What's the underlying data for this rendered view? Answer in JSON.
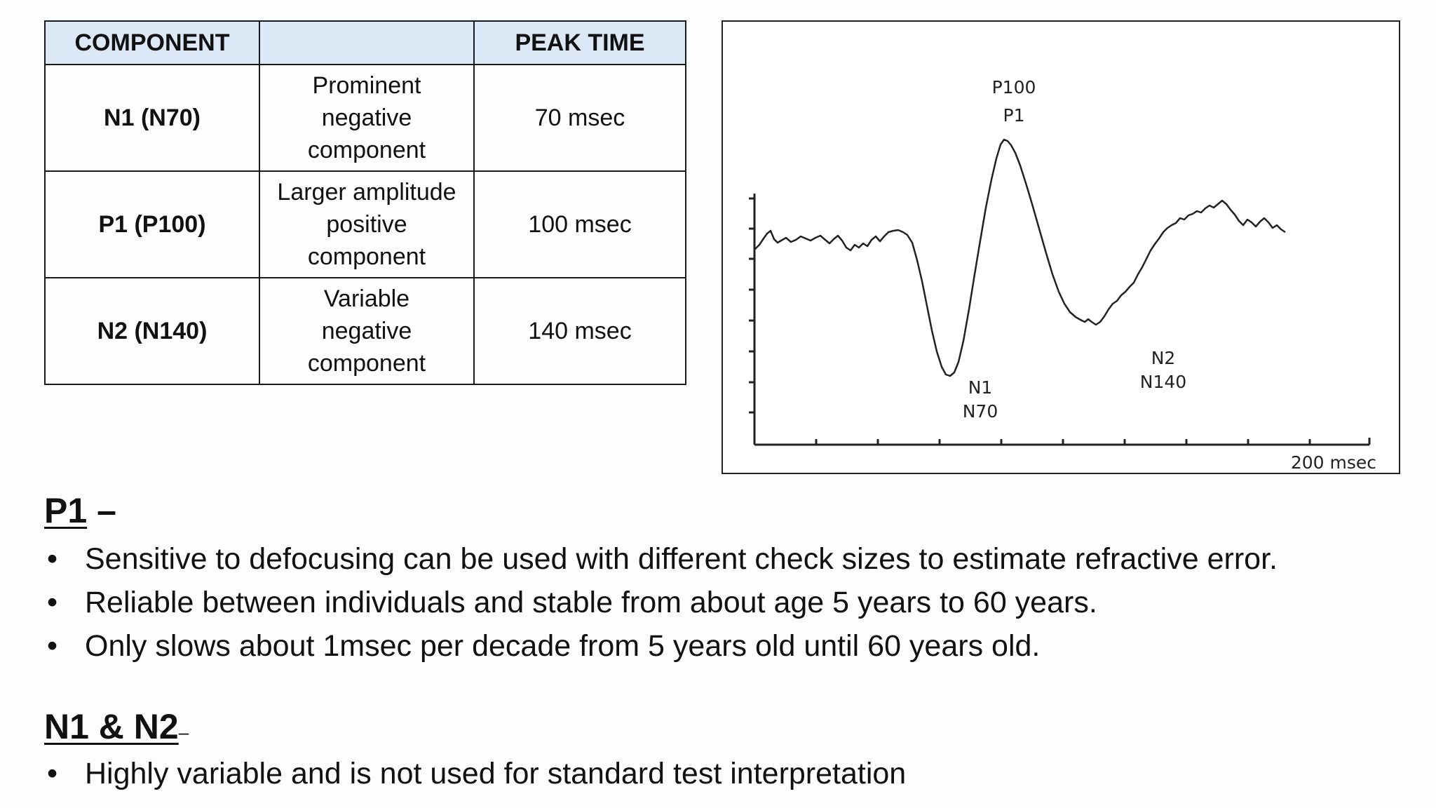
{
  "table": {
    "headers": [
      "COMPONENT",
      "",
      "PEAK TIME"
    ],
    "rows": [
      {
        "component": "N1 (N70)",
        "description": [
          "Prominent",
          "negative",
          "component"
        ],
        "peak_time": "70 msec"
      },
      {
        "component": "P1 (P100)",
        "description": [
          "Larger amplitude",
          "positive",
          "component"
        ],
        "peak_time": "100 msec"
      },
      {
        "component": "N2 (N140)",
        "description": [
          "Variable",
          "negative",
          "component"
        ],
        "peak_time": "140 msec"
      }
    ]
  },
  "waveform": {
    "labels": {
      "p100": "P100",
      "p1": "P1",
      "n1": "N1",
      "n70": "N70",
      "n2": "N2",
      "n140": "N140",
      "time_axis": "200 msec"
    }
  },
  "sections": {
    "p1": {
      "title": "P1",
      "dash": "–",
      "bullets": [
        "Sensitive to defocusing can be used with different check sizes to estimate refractive error.",
        "Reliable between individuals and stable from about age 5 years to 60 years.",
        "Only slows about 1msec per decade from 5 years old until 60 years old."
      ]
    },
    "n1n2": {
      "title": "N1 & N2",
      "dash": "–",
      "bullets": [
        "Highly variable and is not used for standard test interpretation"
      ]
    }
  },
  "bullet_glyph": "•"
}
